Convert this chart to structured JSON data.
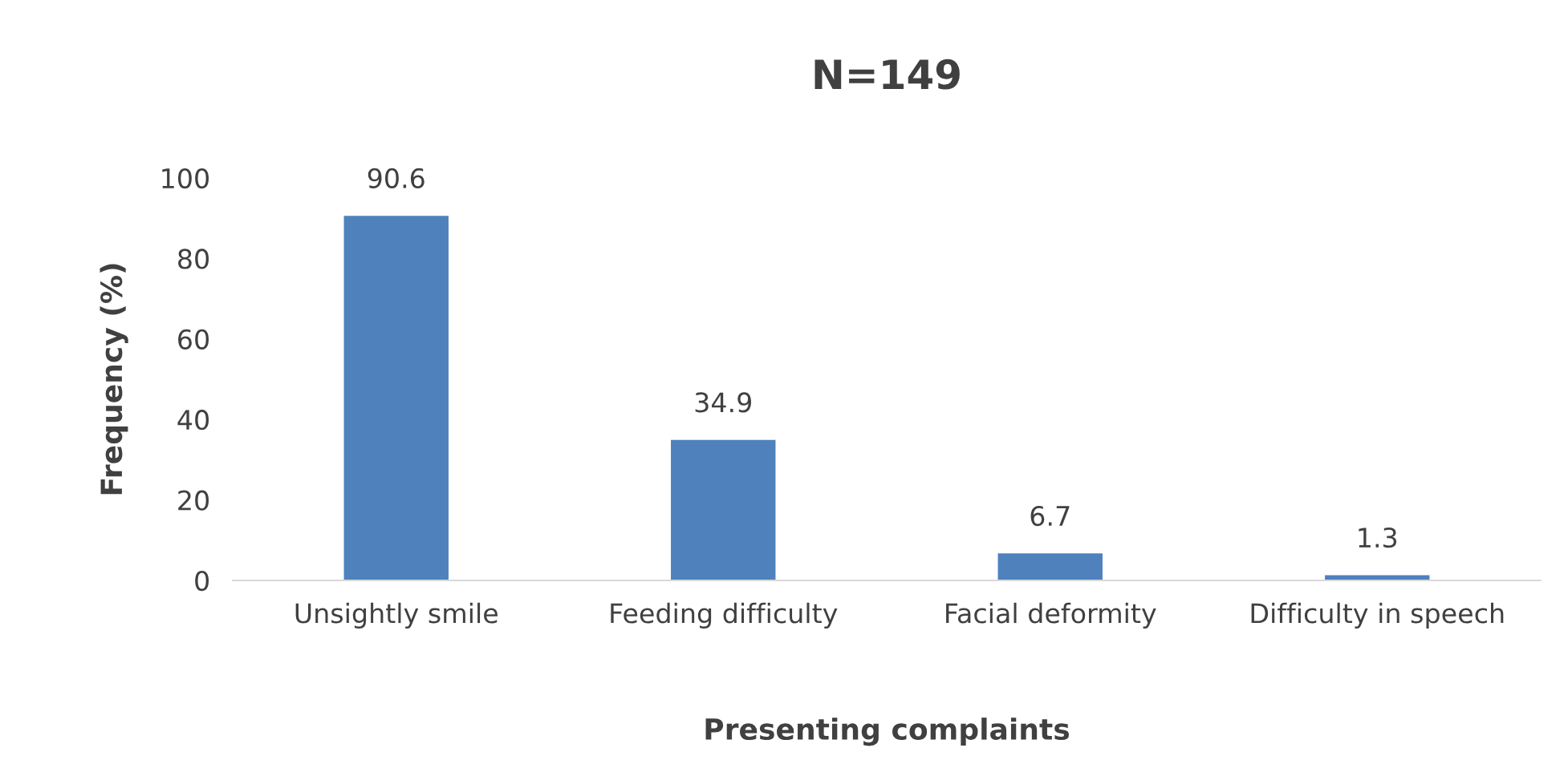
{
  "chart_data": {
    "type": "bar",
    "title": "N=149",
    "xlabel": "Presenting complaints",
    "ylabel": "Frequency (%)",
    "categories": [
      "Unsightly smile",
      "Feeding difficulty",
      "Facial deformity",
      "Difficulty in speech"
    ],
    "values": [
      90.6,
      34.9,
      6.7,
      1.3
    ],
    "color": "#4f81bd",
    "ylim": [
      0,
      100
    ],
    "yticks": [
      0,
      20,
      40,
      60,
      80,
      100
    ],
    "grid": false,
    "data_labels": true
  }
}
